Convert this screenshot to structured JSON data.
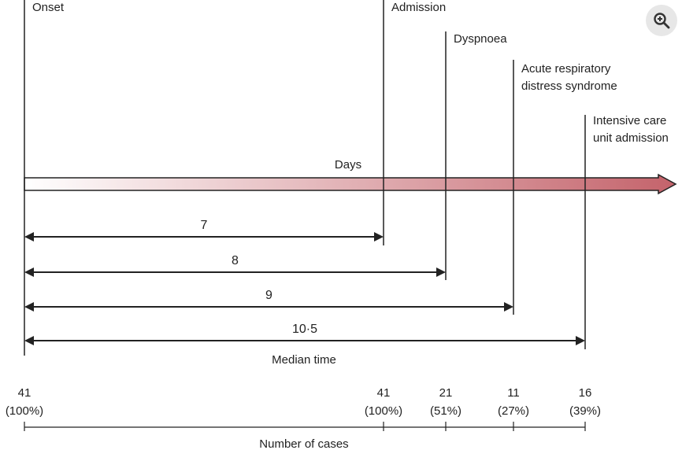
{
  "events": [
    {
      "key": "onset",
      "lines": [
        "Onset"
      ]
    },
    {
      "key": "admission",
      "lines": [
        "Admission"
      ]
    },
    {
      "key": "dyspnoea",
      "lines": [
        "Dyspnoea"
      ]
    },
    {
      "key": "ards",
      "lines": [
        "Acute respiratory",
        "distress syndrome"
      ]
    },
    {
      "key": "icu",
      "lines": [
        "Intensive care",
        "unit admission"
      ]
    }
  ],
  "axis_label": "Days",
  "intervals": [
    {
      "to": "admission",
      "label": "7"
    },
    {
      "to": "dyspnoea",
      "label": "8"
    },
    {
      "to": "ards",
      "label": "9"
    },
    {
      "to": "icu",
      "label": "10·5"
    }
  ],
  "median_label": "Median time",
  "cases": [
    {
      "at": "onset",
      "count": "41",
      "percent": "(100%)"
    },
    {
      "at": "admission",
      "count": "41",
      "percent": "(100%)"
    },
    {
      "at": "dyspnoea",
      "count": "21",
      "percent": "(51%)"
    },
    {
      "at": "ards",
      "count": "11",
      "percent": "(27%)"
    },
    {
      "at": "icu",
      "count": "16",
      "percent": "(39%)"
    }
  ],
  "cases_label": "Number of cases",
  "colors": {
    "line": "#222222",
    "arrow_start": "#ffffff",
    "arrow_end": "#c4636b"
  },
  "zoom_icon": "zoom-in-icon"
}
